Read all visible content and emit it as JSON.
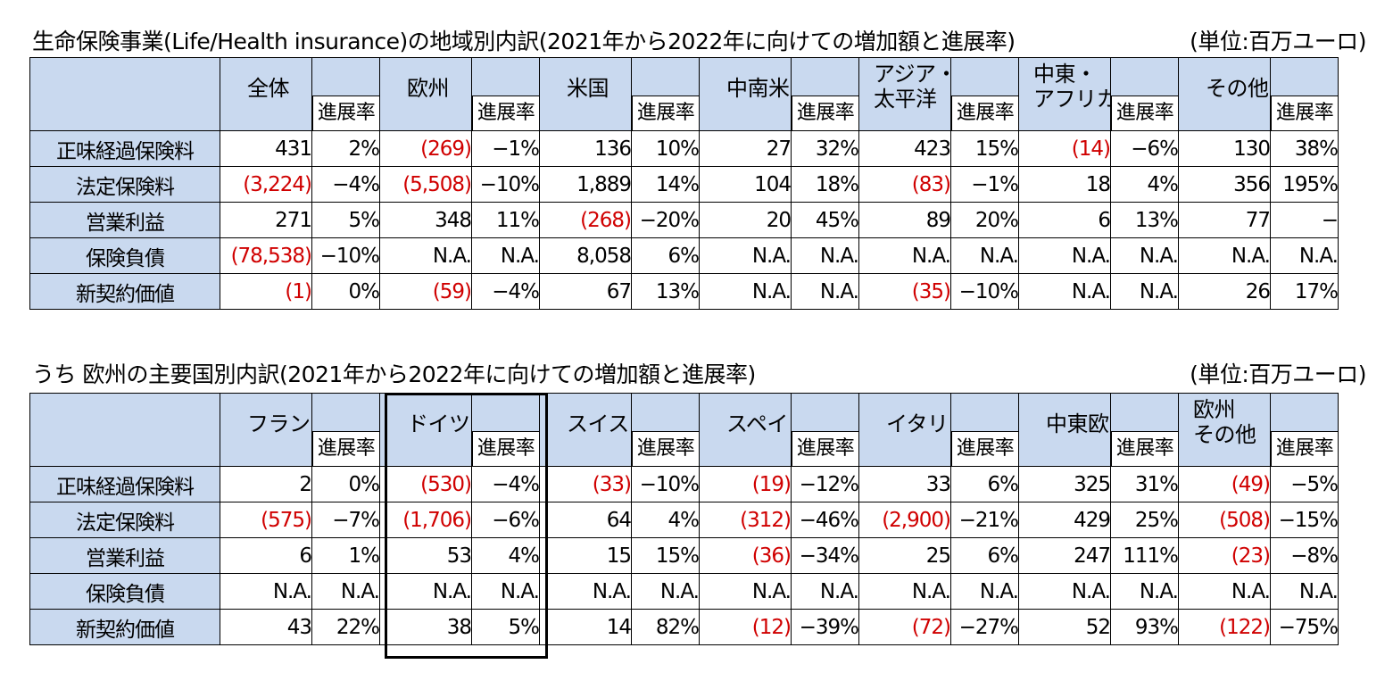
{
  "table1": {
    "caption": "生命保険事業(Life/Health insurance)の地域別内訳(2021年から2022年に向けての増加額と進展率)",
    "unit": "(単位:百万ユーロ)",
    "progress_label": "進展率",
    "columns": [
      {
        "label": "全体"
      },
      {
        "label": "欧州"
      },
      {
        "label": "米国"
      },
      {
        "label": "中南米"
      },
      {
        "label": "アジア・\n太平洋",
        "line1": "アジア・",
        "line2": "太平洋"
      },
      {
        "label": "中東・\nアフリカ",
        "line1": "中東・",
        "line2": "アフリカ"
      },
      {
        "label": "その他"
      }
    ],
    "rows": [
      {
        "label": "正味経過保険料",
        "cells": [
          [
            "431",
            "2%"
          ],
          [
            "(269)",
            "−1%"
          ],
          [
            "136",
            "10%"
          ],
          [
            "27",
            "32%"
          ],
          [
            "423",
            "15%"
          ],
          [
            "(14)",
            "−6%"
          ],
          [
            "130",
            "38%"
          ]
        ]
      },
      {
        "label": "法定保険料",
        "cells": [
          [
            "(3,224)",
            "−4%"
          ],
          [
            "(5,508)",
            "−10%"
          ],
          [
            "1,889",
            "14%"
          ],
          [
            "104",
            "18%"
          ],
          [
            "(83)",
            "−1%"
          ],
          [
            "18",
            "4%"
          ],
          [
            "356",
            "195%"
          ]
        ]
      },
      {
        "label": "営業利益",
        "cells": [
          [
            "271",
            "5%"
          ],
          [
            "348",
            "11%"
          ],
          [
            "(268)",
            "−20%"
          ],
          [
            "20",
            "45%"
          ],
          [
            "89",
            "20%"
          ],
          [
            "6",
            "13%"
          ],
          [
            "77",
            "−"
          ]
        ]
      },
      {
        "label": "保険負債",
        "cells": [
          [
            "(78,538)",
            "−10%"
          ],
          [
            "N.A.",
            "N.A."
          ],
          [
            "8,058",
            "6%"
          ],
          [
            "N.A.",
            "N.A."
          ],
          [
            "N.A.",
            "N.A."
          ],
          [
            "N.A.",
            "N.A."
          ],
          [
            "N.A.",
            "N.A."
          ]
        ]
      },
      {
        "label": "新契約価値",
        "cells": [
          [
            "(1)",
            "0%"
          ],
          [
            "(59)",
            "−4%"
          ],
          [
            "67",
            "13%"
          ],
          [
            "N.A.",
            "N.A."
          ],
          [
            "(35)",
            "−10%"
          ],
          [
            "N.A.",
            "N.A."
          ],
          [
            "26",
            "17%"
          ]
        ]
      }
    ]
  },
  "table2": {
    "caption": "うち 欧州の主要国別内訳(2021年から2022年に向けての増加額と進展率)",
    "unit": "(単位:百万ユーロ)",
    "progress_label": "進展率",
    "columns": [
      {
        "label": "フランス"
      },
      {
        "label": "ドイツ"
      },
      {
        "label": "スイス"
      },
      {
        "label": "スペイン"
      },
      {
        "label": "イタリア"
      },
      {
        "label": "中東欧"
      },
      {
        "label": "欧州\nその他",
        "line1": "欧州",
        "line2": "その他"
      }
    ],
    "rows": [
      {
        "label": "正味経過保険料",
        "cells": [
          [
            "2",
            "0%"
          ],
          [
            "(530)",
            "−4%"
          ],
          [
            "(33)",
            "−10%"
          ],
          [
            "(19)",
            "−12%"
          ],
          [
            "33",
            "6%"
          ],
          [
            "325",
            "31%"
          ],
          [
            "(49)",
            "−5%"
          ]
        ]
      },
      {
        "label": "法定保険料",
        "cells": [
          [
            "(575)",
            "−7%"
          ],
          [
            "(1,706)",
            "−6%"
          ],
          [
            "64",
            "4%"
          ],
          [
            "(312)",
            "−46%"
          ],
          [
            "(2,900)",
            "−21%"
          ],
          [
            "429",
            "25%"
          ],
          [
            "(508)",
            "−15%"
          ]
        ]
      },
      {
        "label": "営業利益",
        "cells": [
          [
            "6",
            "1%"
          ],
          [
            "53",
            "4%"
          ],
          [
            "15",
            "15%"
          ],
          [
            "(36)",
            "−34%"
          ],
          [
            "25",
            "6%"
          ],
          [
            "247",
            "111%"
          ],
          [
            "(23)",
            "−8%"
          ]
        ]
      },
      {
        "label": "保険負債",
        "cells": [
          [
            "N.A.",
            "N.A."
          ],
          [
            "N.A.",
            "N.A."
          ],
          [
            "N.A.",
            "N.A."
          ],
          [
            "N.A.",
            "N.A."
          ],
          [
            "N.A.",
            "N.A."
          ],
          [
            "N.A.",
            "N.A."
          ],
          [
            "N.A.",
            "N.A."
          ]
        ]
      },
      {
        "label": "新契約価値",
        "cells": [
          [
            "43",
            "22%"
          ],
          [
            "38",
            "5%"
          ],
          [
            "14",
            "82%"
          ],
          [
            "(12)",
            "−39%"
          ],
          [
            "(72)",
            "−27%"
          ],
          [
            "52",
            "93%"
          ],
          [
            "(122)",
            "−75%"
          ]
        ]
      }
    ]
  },
  "colors": {
    "header_bg": "#c9d9ef",
    "negative": "#d00000"
  }
}
